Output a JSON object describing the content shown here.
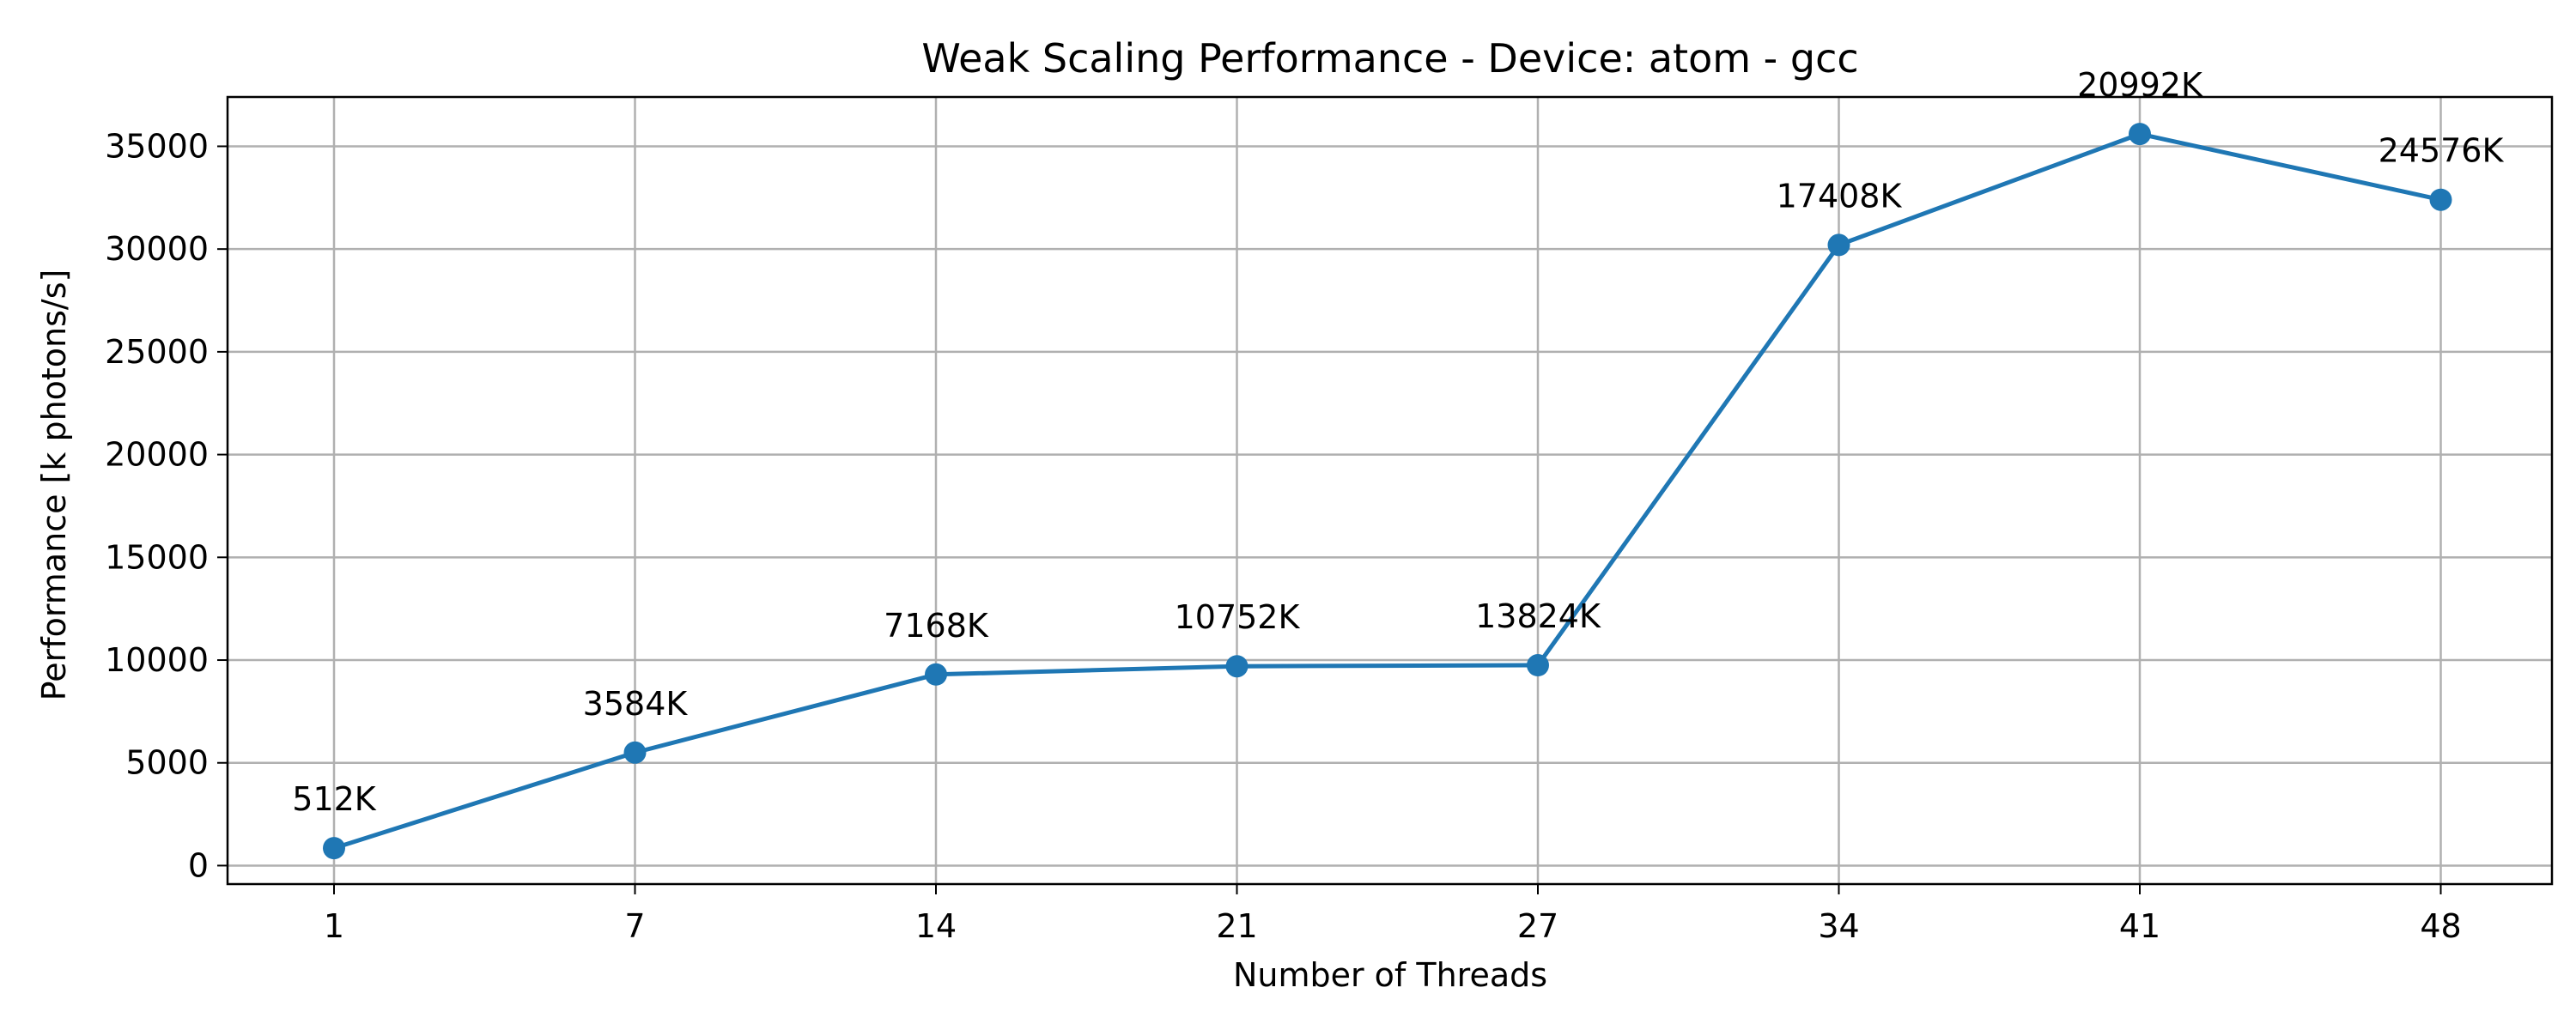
{
  "chart_data": {
    "type": "line",
    "title": "Weak Scaling Performance - Device: atom - gcc",
    "xlabel": "Number of Threads",
    "ylabel": "Performance [k photons/s]",
    "categories": [
      "1",
      "7",
      "14",
      "21",
      "27",
      "34",
      "41",
      "48"
    ],
    "series": [
      {
        "values": [
          850,
          5500,
          9300,
          9700,
          9750,
          30200,
          35600,
          32400
        ],
        "labels": [
          "512K",
          "3584K",
          "7168K",
          "10752K",
          "13824K",
          "17408K",
          "20992K",
          "24576K"
        ],
        "color": "#1f77b4"
      }
    ],
    "ylim": [
      -900,
      37400
    ],
    "yticks": [
      0,
      5000,
      10000,
      15000,
      20000,
      25000,
      30000,
      35000
    ],
    "grid": true
  }
}
